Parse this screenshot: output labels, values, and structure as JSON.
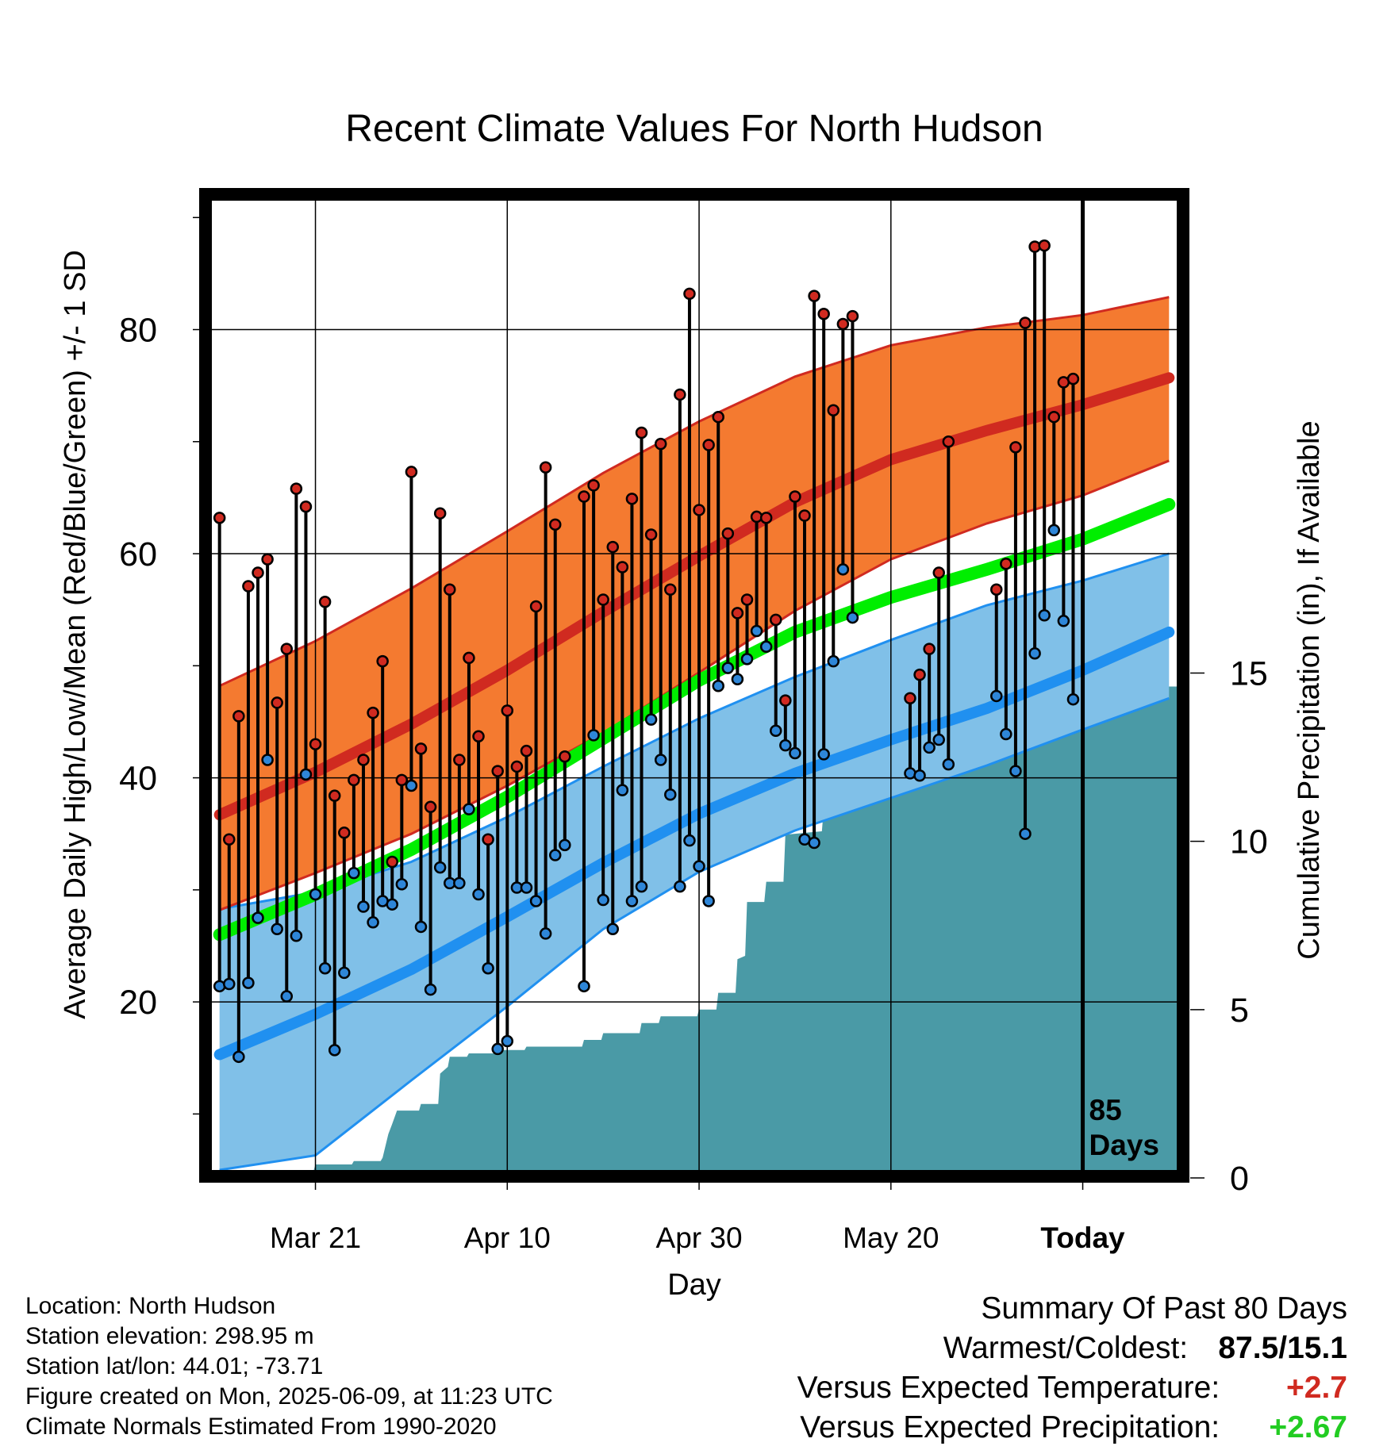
{
  "chart_data": {
    "type": "line",
    "title": "Recent Climate Values For North Hudson",
    "xlabel": "Day",
    "ylabel": "Average Daily High/Low/Mean (Red/Blue/Green) +/- 1 SD",
    "y2label": "Cumulative Precipitation (in), If Available",
    "x_tick_labels": [
      "Mar 21",
      "Apr 10",
      "Apr 30",
      "May 20",
      "Today"
    ],
    "x_ticks_day": [
      10,
      30,
      50,
      70,
      90
    ],
    "xlim_day": [
      -0.8,
      99.8
    ],
    "today_marker_label": "85 Days",
    "ylim": [
      5,
      92
    ],
    "y_ticks": [
      20,
      40,
      60,
      80
    ],
    "y_minor_ticks": [
      10,
      30,
      50,
      70,
      90
    ],
    "y2lim": [
      0,
      29.2
    ],
    "y2_ticks": [
      0,
      5,
      10,
      15
    ],
    "grid": true,
    "colors": {
      "high_band": "#f47a30",
      "high_band_edge": "#d02a20",
      "high_mean": "#d02a20",
      "low_band": "#80c0e8",
      "low_band_edge": "#2090f0",
      "low_mean": "#2090f0",
      "mean_line": "#00ee00",
      "precip": "#4a9aa6",
      "high_marker": "#d02a20",
      "low_marker": "#2e86d8",
      "positive_temp": "#d02a20",
      "positive_precip": "#22cc22"
    },
    "normal_days": [
      0,
      10,
      20,
      30,
      40,
      50,
      60,
      70,
      80,
      90,
      99
    ],
    "normal_high_mean": [
      36.7,
      40.5,
      44.8,
      49.6,
      54.8,
      59.8,
      64.6,
      68.4,
      71.0,
      73.3,
      75.7
    ],
    "normal_high_upper": [
      48.2,
      52.2,
      56.9,
      62.0,
      67.2,
      71.8,
      75.8,
      78.6,
      80.2,
      81.3,
      82.9
    ],
    "normal_high_lower": [
      28.2,
      31.5,
      35.0,
      39.3,
      44.0,
      49.4,
      54.9,
      59.5,
      62.7,
      65.2,
      68.3
    ],
    "normal_mean": [
      26.0,
      29.6,
      33.6,
      38.3,
      43.5,
      48.7,
      53.0,
      56.1,
      58.6,
      61.3,
      64.4
    ],
    "normal_low_mean": [
      15.3,
      18.9,
      22.9,
      27.6,
      32.4,
      36.8,
      40.4,
      43.4,
      46.2,
      49.6,
      53.0
    ],
    "normal_low_upper": [
      28.3,
      29.8,
      32.5,
      36.5,
      41.0,
      45.3,
      49.0,
      52.3,
      55.4,
      57.6,
      60.0
    ],
    "normal_low_lower": [
      5.0,
      6.3,
      13.0,
      19.6,
      26.5,
      31.6,
      35.3,
      38.2,
      41.1,
      44.3,
      47.1
    ],
    "daily": [
      {
        "day": 0,
        "high": 63.2,
        "low": 21.4
      },
      {
        "day": 1,
        "high": 34.5,
        "low": 21.6
      },
      {
        "day": 2,
        "high": 45.5,
        "low": 15.1
      },
      {
        "day": 3,
        "high": 57.1,
        "low": 21.7
      },
      {
        "day": 4,
        "high": 58.3,
        "low": 27.5
      },
      {
        "day": 5,
        "high": 59.5,
        "low": 41.6
      },
      {
        "day": 6,
        "high": 46.7,
        "low": 26.5
      },
      {
        "day": 7,
        "high": 51.5,
        "low": 20.5
      },
      {
        "day": 8,
        "high": 65.8,
        "low": 25.9
      },
      {
        "day": 9,
        "high": 64.2,
        "low": 40.3
      },
      {
        "day": 10,
        "high": 43.0,
        "low": 29.6
      },
      {
        "day": 11,
        "high": 55.7,
        "low": 23.0
      },
      {
        "day": 12,
        "high": 38.4,
        "low": 15.7
      },
      {
        "day": 13,
        "high": 35.1,
        "low": 22.6
      },
      {
        "day": 14,
        "high": 39.8,
        "low": 31.5
      },
      {
        "day": 15,
        "high": 41.6,
        "low": 28.5
      },
      {
        "day": 16,
        "high": 45.8,
        "low": 27.1
      },
      {
        "day": 17,
        "high": 50.4,
        "low": 29.0
      },
      {
        "day": 18,
        "high": 32.5,
        "low": 28.7
      },
      {
        "day": 19,
        "high": 39.8,
        "low": 30.5
      },
      {
        "day": 20,
        "high": 67.3,
        "low": 39.3
      },
      {
        "day": 21,
        "high": 42.6,
        "low": 26.7
      },
      {
        "day": 22,
        "high": 37.4,
        "low": 21.1
      },
      {
        "day": 23,
        "high": 63.6,
        "low": 32.0
      },
      {
        "day": 24,
        "high": 56.8,
        "low": 30.6
      },
      {
        "day": 25,
        "high": 41.6,
        "low": 30.6
      },
      {
        "day": 26,
        "high": 50.7,
        "low": 37.2
      },
      {
        "day": 27,
        "high": 43.7,
        "low": 29.6
      },
      {
        "day": 28,
        "high": 34.5,
        "low": 23.0
      },
      {
        "day": 29,
        "high": 40.6,
        "low": 15.8
      },
      {
        "day": 30,
        "high": 46.0,
        "low": 16.5
      },
      {
        "day": 31,
        "high": 41.0,
        "low": 30.2
      },
      {
        "day": 32,
        "high": 42.4,
        "low": 30.2
      },
      {
        "day": 33,
        "high": 55.3,
        "low": 29.0
      },
      {
        "day": 34,
        "high": 67.7,
        "low": 26.1
      },
      {
        "day": 35,
        "high": 62.6,
        "low": 33.1
      },
      {
        "day": 36,
        "high": 41.9,
        "low": 34.0
      },
      {
        "day": 38,
        "high": 65.1,
        "low": 21.4
      },
      {
        "day": 39,
        "high": 66.1,
        "low": 43.8
      },
      {
        "day": 40,
        "high": 55.9,
        "low": 29.1
      },
      {
        "day": 41,
        "high": 60.6,
        "low": 26.5
      },
      {
        "day": 42,
        "high": 58.8,
        "low": 38.9
      },
      {
        "day": 43,
        "high": 64.9,
        "low": 29.0
      },
      {
        "day": 44,
        "high": 70.8,
        "low": 30.3
      },
      {
        "day": 45,
        "high": 61.7,
        "low": 45.2
      },
      {
        "day": 46,
        "high": 69.8,
        "low": 41.6
      },
      {
        "day": 47,
        "high": 56.8,
        "low": 38.5
      },
      {
        "day": 48,
        "high": 74.2,
        "low": 30.3
      },
      {
        "day": 49,
        "high": 83.2,
        "low": 34.4
      },
      {
        "day": 50,
        "high": 63.9,
        "low": 32.1
      },
      {
        "day": 51,
        "high": 69.7,
        "low": 29.0
      },
      {
        "day": 52,
        "high": 72.2,
        "low": 48.2
      },
      {
        "day": 53,
        "high": 61.8,
        "low": 49.8
      },
      {
        "day": 54,
        "high": 54.7,
        "low": 48.8
      },
      {
        "day": 55,
        "high": 55.9,
        "low": 50.6
      },
      {
        "day": 56,
        "high": 63.3,
        "low": 53.1
      },
      {
        "day": 57,
        "high": 63.2,
        "low": 51.7
      },
      {
        "day": 58,
        "high": 54.1,
        "low": 44.2
      },
      {
        "day": 59,
        "high": 46.9,
        "low": 42.9
      },
      {
        "day": 60,
        "high": 65.1,
        "low": 42.2
      },
      {
        "day": 61,
        "high": 63.4,
        "low": 34.5
      },
      {
        "day": 62,
        "high": 83.0,
        "low": 34.2
      },
      {
        "day": 63,
        "high": 81.4,
        "low": 42.1
      },
      {
        "day": 64,
        "high": 72.8,
        "low": 50.4
      },
      {
        "day": 65,
        "high": 80.5,
        "low": 58.6
      },
      {
        "day": 66,
        "high": 81.2,
        "low": 54.3
      },
      {
        "day": 72,
        "high": 47.1,
        "low": 40.4
      },
      {
        "day": 73,
        "high": 49.2,
        "low": 40.2
      },
      {
        "day": 74,
        "high": 51.5,
        "low": 42.7
      },
      {
        "day": 75,
        "high": 58.3,
        "low": 43.4
      },
      {
        "day": 76,
        "high": 70.0,
        "low": 41.2
      },
      {
        "day": 81,
        "high": 56.8,
        "low": 47.3
      },
      {
        "day": 82,
        "high": 59.1,
        "low": 43.9
      },
      {
        "day": 83,
        "high": 69.5,
        "low": 40.6
      },
      {
        "day": 84,
        "high": 80.6,
        "low": 35.0
      },
      {
        "day": 85,
        "high": 87.4,
        "low": 51.1
      },
      {
        "day": 86,
        "high": 87.5,
        "low": 54.5
      },
      {
        "day": 87,
        "high": 72.2,
        "low": 62.1
      },
      {
        "day": 88,
        "high": 75.3,
        "low": 54.0
      },
      {
        "day": 89,
        "high": 75.6,
        "low": 47.0
      }
    ],
    "precip_days": [
      -1,
      6.8,
      7,
      9.8,
      10,
      13.8,
      14,
      16.8,
      17,
      17.6,
      18,
      18.5,
      19,
      20.8,
      21,
      22.8,
      23,
      23.8,
      24,
      25.8,
      26,
      28.8,
      29,
      31.8,
      32,
      37.8,
      38,
      39.8,
      40,
      43.8,
      44,
      45.8,
      46,
      49.8,
      50,
      51.8,
      52,
      53.8,
      54,
      54.8,
      55,
      56.8,
      57,
      58.8,
      59,
      62.8,
      63,
      64.8,
      65,
      66.8,
      67,
      69.8,
      70,
      71.8,
      72,
      72.8,
      73,
      79.8,
      80,
      84.8,
      85,
      85.8,
      86,
      99.8
    ],
    "precip_values": [
      0,
      0,
      0.2,
      0.2,
      0.4,
      0.4,
      0.5,
      0.5,
      0.6,
      1.3,
      1.6,
      2.0,
      2.0,
      2.0,
      2.2,
      2.2,
      3.1,
      3.3,
      3.6,
      3.6,
      3.7,
      3.7,
      3.8,
      3.8,
      3.9,
      3.9,
      4.1,
      4.1,
      4.3,
      4.3,
      4.6,
      4.6,
      4.8,
      4.8,
      5.0,
      5.0,
      5.5,
      5.5,
      6.5,
      6.6,
      8.2,
      8.2,
      8.8,
      8.8,
      10.2,
      10.3,
      11.0,
      11.0,
      11.2,
      11.2,
      11.9,
      12.0,
      12.2,
      12.2,
      12.5,
      12.5,
      12.6,
      12.6,
      13.4,
      13.4,
      14.5,
      14.6,
      14.6,
      14.6
    ]
  },
  "footer": {
    "location": "Location: North Hudson",
    "elevation": "Station elevation: 298.95 m",
    "latlon": "Station lat/lon: 44.01; -73.71",
    "created": "Figure created on Mon, 2025-06-09, at 11:23 UTC",
    "normals": "Climate Normals Estimated From 1990-2020"
  },
  "summary": {
    "heading": "Summary Of Past 80 Days",
    "warm_cold_label": "Warmest/Coldest:",
    "warm_cold_value": "87.5/15.1",
    "temp_label": "Versus Expected Temperature:",
    "temp_value": "+2.7",
    "precip_label": "Versus Expected Precipitation:",
    "precip_value": "+2.67"
  }
}
